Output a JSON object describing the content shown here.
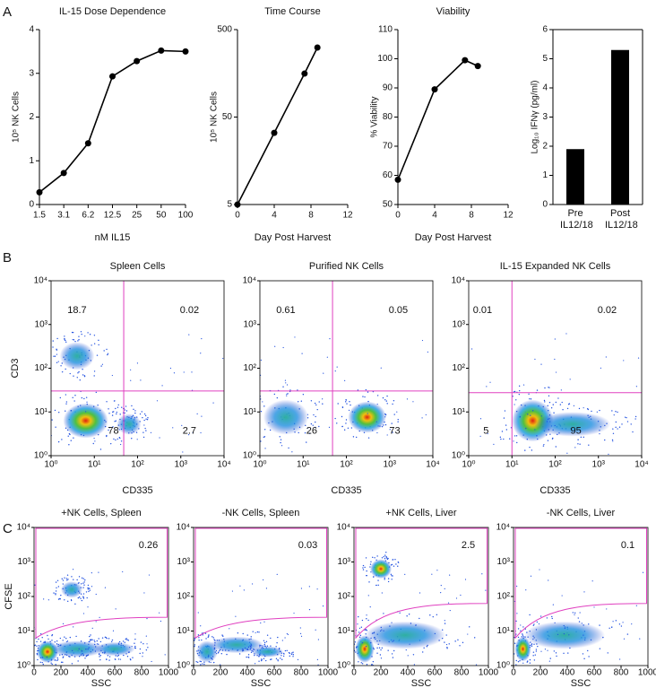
{
  "panel_labels": [
    "A",
    "B",
    "C"
  ],
  "chart_data": [
    {
      "type": "line",
      "title": "IL-15 Dose Dependence",
      "categories": [
        "1.5",
        "3.1",
        "6.2",
        "12.5",
        "25",
        "50",
        "100"
      ],
      "values": [
        0.28,
        0.72,
        1.4,
        2.93,
        3.28,
        3.52,
        3.5
      ],
      "ylim": [
        0,
        4
      ],
      "yticks": [
        0,
        1,
        2,
        3,
        4
      ],
      "x_label": "nM IL15",
      "y_label": "10⁵ NK Cells",
      "color": "#000000"
    },
    {
      "type": "line",
      "title": "Time Course",
      "x": [
        0,
        4,
        7.3,
        8.7
      ],
      "values": [
        5,
        33,
        157,
        312
      ],
      "xlim": [
        0,
        12
      ],
      "xticks": [
        0,
        4,
        8,
        12
      ],
      "ylim": [
        5,
        500
      ],
      "yticks": [
        5,
        50,
        500
      ],
      "log_y": true,
      "x_label": "Day Post Harvest",
      "y_label": "10⁵ NK Cells",
      "color": "#000000"
    },
    {
      "type": "line",
      "title": "Viability",
      "x": [
        0,
        4,
        7.3,
        8.7
      ],
      "values": [
        58.5,
        89.5,
        99.5,
        97.5
      ],
      "xlim": [
        0,
        12
      ],
      "xticks": [
        0,
        4,
        8,
        12
      ],
      "ylim": [
        50,
        110
      ],
      "yticks": [
        50,
        60,
        70,
        80,
        90,
        100,
        110
      ],
      "x_label": "Day Post Harvest",
      "y_label": "% Viability",
      "color": "#000000"
    },
    {
      "type": "bar",
      "categories": [
        "Pre IL12/18",
        "Post IL12/18"
      ],
      "values": [
        1.9,
        5.3
      ],
      "ylim": [
        0,
        6
      ],
      "yticks": [
        0,
        1,
        2,
        3,
        4,
        5,
        6
      ],
      "y_label": "Log₁₀ IFNγ (pg/ml)",
      "color": "#000000"
    },
    {
      "type": "flow_cytometry",
      "title": "Spleen Cells",
      "quadrant_values": [
        18.7,
        0.02,
        78,
        2.7
      ],
      "x_label": "CD335",
      "y_label": "CD3",
      "log_x": true,
      "xlim": [
        1,
        10000
      ],
      "xticks": [
        {
          "value": 1,
          "label": "10⁰"
        },
        {
          "value": 10,
          "label": "10¹"
        },
        {
          "value": 100,
          "label": "10²"
        },
        {
          "value": 1000,
          "label": "10³"
        },
        {
          "value": 10000,
          "label": "10⁴"
        }
      ],
      "ylim": [
        1,
        10000
      ],
      "yticks": [
        {
          "value": 1,
          "label": "10⁰"
        },
        {
          "value": 10,
          "label": "10¹"
        },
        {
          "value": 100,
          "label": "10²"
        },
        {
          "value": 1000,
          "label": "10³"
        },
        {
          "value": 10000,
          "label": "10⁴"
        }
      ]
    },
    {
      "type": "flow_cytometry",
      "title": "Purified NK Cells",
      "quadrant_values": [
        0.61,
        0.05,
        26,
        73
      ],
      "x_label": "CD335",
      "log_x": true,
      "xlim": [
        1,
        10000
      ],
      "xticks": [
        {
          "value": 1,
          "label": "10⁰"
        },
        {
          "value": 10,
          "label": "10¹"
        },
        {
          "value": 100,
          "label": "10²"
        },
        {
          "value": 1000,
          "label": "10³"
        },
        {
          "value": 10000,
          "label": "10⁴"
        }
      ],
      "ylim": [
        1,
        10000
      ],
      "yticks": [
        {
          "value": 1,
          "label": "10⁰"
        },
        {
          "value": 10,
          "label": "10¹"
        },
        {
          "value": 100,
          "label": "10²"
        },
        {
          "value": 1000,
          "label": "10³"
        },
        {
          "value": 10000,
          "label": "10⁴"
        }
      ]
    },
    {
      "type": "flow_cytometry",
      "title": "IL-15 Expanded NK Cells",
      "quadrant_values": [
        0.01,
        0.02,
        5,
        95
      ],
      "x_label": "CD335",
      "log_x": true,
      "xlim": [
        1,
        10000
      ],
      "xticks": [
        {
          "value": 1,
          "label": "10⁰"
        },
        {
          "value": 10,
          "label": "10¹"
        },
        {
          "value": 100,
          "label": "10²"
        },
        {
          "value": 1000,
          "label": "10³"
        },
        {
          "value": 10000,
          "label": "10⁴"
        }
      ],
      "ylim": [
        1,
        10000
      ],
      "yticks": [
        {
          "value": 1,
          "label": "10⁰"
        },
        {
          "value": 10,
          "label": "10¹"
        },
        {
          "value": 100,
          "label": "10²"
        },
        {
          "value": 1000,
          "label": "10³"
        },
        {
          "value": 10000,
          "label": "10⁴"
        }
      ]
    },
    {
      "type": "flow_cytometry",
      "title": "+NK Cells, Spleen",
      "quadrant_values": [
        0.26
      ],
      "x_label": "SSC",
      "y_label": "CFSE",
      "xlim": [
        0,
        1000
      ],
      "xticks": [
        0,
        200,
        400,
        600,
        800,
        1000
      ],
      "ylim": [
        1,
        10000
      ],
      "yticks": [
        {
          "value": 1,
          "label": "10⁰"
        },
        {
          "value": 10,
          "label": "10¹"
        },
        {
          "value": 100,
          "label": "10²"
        },
        {
          "value": 1000,
          "label": "10³"
        },
        {
          "value": 10000,
          "label": "10⁴"
        }
      ]
    },
    {
      "type": "flow_cytometry",
      "title": "-NK Cells, Spleen",
      "quadrant_values": [
        0.03
      ],
      "x_label": "SSC",
      "xlim": [
        0,
        1000
      ],
      "xticks": [
        0,
        200,
        400,
        600,
        800,
        1000
      ],
      "ylim": [
        1,
        10000
      ],
      "yticks": [
        {
          "value": 1,
          "label": "10⁰"
        },
        {
          "value": 10,
          "label": "10¹"
        },
        {
          "value": 100,
          "label": "10²"
        },
        {
          "value": 1000,
          "label": "10³"
        },
        {
          "value": 10000,
          "label": "10⁴"
        }
      ]
    },
    {
      "type": "flow_cytometry",
      "title": "+NK Cells, Liver",
      "quadrant_values": [
        2.5
      ],
      "x_label": "SSC",
      "xlim": [
        0,
        1000
      ],
      "xticks": [
        0,
        200,
        400,
        600,
        800,
        1000
      ],
      "ylim": [
        1,
        10000
      ],
      "yticks": [
        {
          "value": 1,
          "label": "10⁰"
        },
        {
          "value": 10,
          "label": "10¹"
        },
        {
          "value": 100,
          "label": "10²"
        },
        {
          "value": 1000,
          "label": "10³"
        },
        {
          "value": 10000,
          "label": "10⁴"
        }
      ]
    },
    {
      "type": "flow_cytometry",
      "title": "-NK Cells, Liver",
      "quadrant_values": [
        0.1
      ],
      "x_label": "SSC",
      "xlim": [
        0,
        1000
      ],
      "xticks": [
        0,
        200,
        400,
        600,
        800,
        1000
      ],
      "ylim": [
        1,
        10000
      ],
      "yticks": [
        {
          "value": 1,
          "label": "10⁰"
        },
        {
          "value": 10,
          "label": "10¹"
        },
        {
          "value": 100,
          "label": "10²"
        },
        {
          "value": 1000,
          "label": "10³"
        },
        {
          "value": 10000,
          "label": "10⁴"
        }
      ]
    }
  ]
}
